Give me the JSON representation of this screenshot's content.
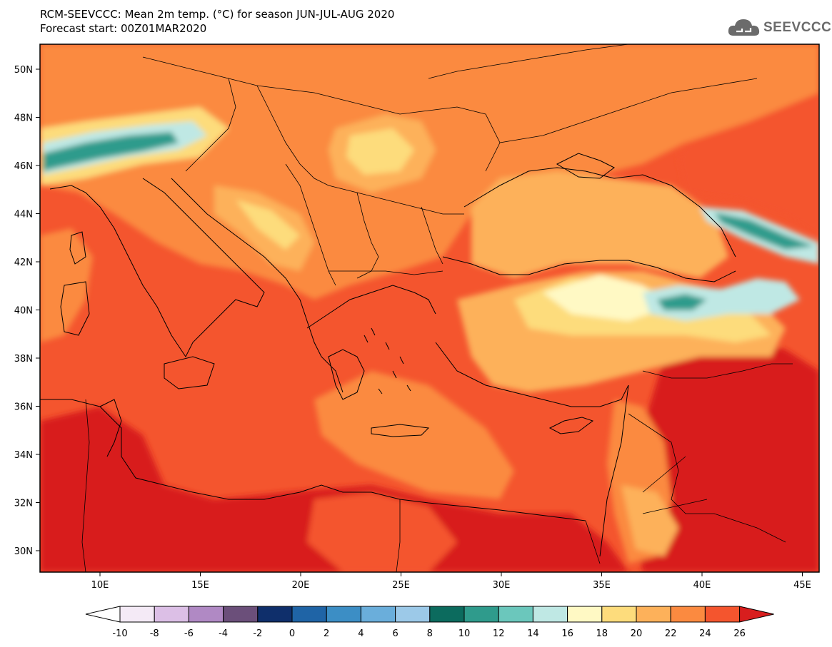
{
  "header": {
    "title_line1": "RCM-SEEVCCC: Mean 2m temp. (°C) for season JUN-JUL-AUG 2020",
    "title_line2": "Forecast start: 00Z01MAR2020"
  },
  "logo": {
    "text": "SEEVCCC",
    "icon": "cloud-icon",
    "color": "#6b6b6b"
  },
  "map": {
    "lon_labels": [
      "10E",
      "15E",
      "20E",
      "25E",
      "30E",
      "35E",
      "40E",
      "45E"
    ],
    "lat_labels": [
      "50N",
      "48N",
      "46N",
      "44N",
      "42N",
      "40N",
      "38N",
      "36N",
      "34N",
      "32N",
      "30N"
    ]
  },
  "colorbar": {
    "labels": [
      "-10",
      "-8",
      "-6",
      "-4",
      "-2",
      "0",
      "2",
      "4",
      "6",
      "8",
      "10",
      "12",
      "14",
      "16",
      "18",
      "20",
      "22",
      "24",
      "26"
    ],
    "colors": [
      "#ffffff",
      "#f4eaf6",
      "#dcbfe6",
      "#b089c4",
      "#6b4f7a",
      "#0f2f6b",
      "#1f64a6",
      "#3c8ec5",
      "#6aaedb",
      "#9cc9e8",
      "#0c6b5e",
      "#2f9b8c",
      "#6bc7bc",
      "#bfe8e4",
      "#fff9c4",
      "#fddc7c",
      "#fdb15a",
      "#fb8a40",
      "#f4552e",
      "#d81e1e"
    ]
  }
}
